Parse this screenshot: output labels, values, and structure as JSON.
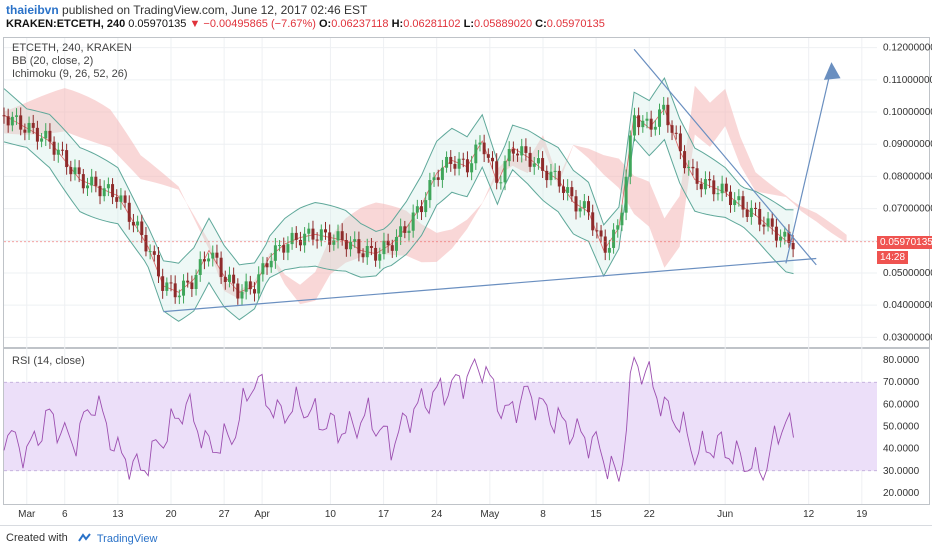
{
  "header": {
    "username": "thaieibvn",
    "published_text": "published on TradingView.com, June 12, 2017 02:46 EST",
    "symbol": "KRAKEN:ETCETH, 240",
    "last": "0.05970135",
    "change_arrow": "▼",
    "change": "−0.00495865 (−7.67%)",
    "open_label": "O:",
    "open": "0.06237118",
    "high_label": "H:",
    "high": "0.06281102",
    "low_label": "L:",
    "low": "0.05889020",
    "close_label": "C:",
    "close": "0.05970135"
  },
  "legend": {
    "title": "ETCETH, 240, KRAKEN",
    "bb": "BB (20, close, 2)",
    "ichimoku": "Ichimoku (9, 26, 52, 26)",
    "rsi": "RSI (14, close)"
  },
  "price_tag": {
    "value": "0.05970135",
    "countdown": "14:28",
    "color": "#ef5350"
  },
  "footer": {
    "created": "Created with",
    "brand": "TradingView"
  },
  "colors": {
    "up": "#3fa65a",
    "down": "#8e2b2b",
    "cloud_bull": "#a5d6a7",
    "cloud_bear": "#f4b6b6",
    "bb": "#5fa89a",
    "rsi": "#9c4fb0",
    "rsi_band": "#ecdff9",
    "trend": "#6a8fc0"
  },
  "chart_data": [
    {
      "type": "candlestick",
      "title": "ETCETH, 240, KRAKEN",
      "overlays": [
        "BB (20, close, 2)",
        "Ichimoku (9, 26, 52, 26)",
        "trend lines"
      ],
      "y_ticks": [
        "0.12000000",
        "0.11000000",
        "0.10000000",
        "0.09000000",
        "0.08000000",
        "0.07000000",
        "0.06000000",
        "0.05000000",
        "0.04000000",
        "0.03000000"
      ],
      "x_ticks": [
        "Mar",
        "6",
        "13",
        "20",
        "27",
        "Apr",
        "10",
        "17",
        "24",
        "May",
        "8",
        "15",
        "22",
        "Jun",
        "12",
        "19"
      ],
      "ylim": [
        0.027,
        0.123
      ],
      "x_days": [
        -3,
        112
      ],
      "grid": true,
      "last_price": 0.05970135,
      "price_path": [
        [
          -3,
          0.099
        ],
        [
          0,
          0.095
        ],
        [
          3,
          0.091
        ],
        [
          5,
          0.085
        ],
        [
          7,
          0.079
        ],
        [
          9,
          0.077
        ],
        [
          12,
          0.074
        ],
        [
          14,
          0.066
        ],
        [
          16,
          0.058
        ],
        [
          18,
          0.046
        ],
        [
          20,
          0.044
        ],
        [
          22,
          0.048
        ],
        [
          24,
          0.057
        ],
        [
          26,
          0.049
        ],
        [
          28,
          0.044
        ],
        [
          30,
          0.046
        ],
        [
          32,
          0.055
        ],
        [
          34,
          0.059
        ],
        [
          36,
          0.061
        ],
        [
          38,
          0.062
        ],
        [
          40,
          0.061
        ],
        [
          42,
          0.06
        ],
        [
          44,
          0.057
        ],
        [
          46,
          0.056
        ],
        [
          48,
          0.059
        ],
        [
          50,
          0.064
        ],
        [
          52,
          0.071
        ],
        [
          54,
          0.081
        ],
        [
          56,
          0.085
        ],
        [
          58,
          0.083
        ],
        [
          60,
          0.091
        ],
        [
          62,
          0.078
        ],
        [
          64,
          0.089
        ],
        [
          66,
          0.086
        ],
        [
          68,
          0.082
        ],
        [
          70,
          0.079
        ],
        [
          72,
          0.072
        ],
        [
          74,
          0.069
        ],
        [
          76,
          0.057
        ],
        [
          78,
          0.064
        ],
        [
          80,
          0.099
        ],
        [
          82,
          0.095
        ],
        [
          84,
          0.101
        ],
        [
          86,
          0.088
        ],
        [
          88,
          0.079
        ],
        [
          90,
          0.077
        ],
        [
          92,
          0.075
        ],
        [
          94,
          0.071
        ],
        [
          96,
          0.068
        ],
        [
          98,
          0.064
        ],
        [
          100,
          0.06
        ],
        [
          101,
          0.0597
        ]
      ]
    },
    {
      "type": "line",
      "title": "RSI (14, close)",
      "y_ticks": [
        "80.0000",
        "70.0000",
        "60.0000",
        "50.0000",
        "40.0000",
        "30.0000",
        "20.0000"
      ],
      "band": [
        30,
        70
      ],
      "ylim": [
        15,
        85
      ],
      "x_days": [
        -3,
        112
      ],
      "series": [
        {
          "x": [
            -3,
            0,
            3,
            6,
            9,
            12,
            15,
            18,
            21,
            24,
            27,
            30,
            33,
            36,
            39,
            42,
            45,
            48,
            51,
            54,
            57,
            60,
            63,
            66,
            69,
            72,
            75,
            78,
            80,
            82,
            84,
            86,
            88,
            91,
            94,
            97,
            100,
            101
          ],
          "values": [
            48,
            38,
            55,
            42,
            62,
            38,
            30,
            45,
            60,
            40,
            45,
            72,
            55,
            60,
            52,
            48,
            55,
            42,
            58,
            65,
            70,
            78,
            55,
            65,
            55,
            48,
            42,
            25,
            80,
            72,
            58,
            52,
            38,
            42,
            35,
            30,
            55,
            45
          ]
        }
      ]
    }
  ]
}
